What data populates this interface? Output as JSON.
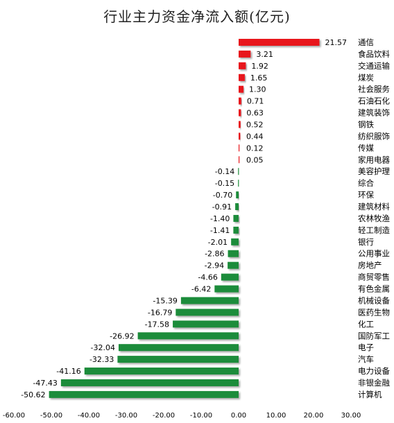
{
  "chart_data": {
    "type": "bar",
    "orientation": "horizontal",
    "title": "行业主力资金净流入额(亿元)",
    "xlabel": "",
    "ylabel": "",
    "xlim": [
      -60,
      30
    ],
    "xticks": [
      "-60.00",
      "-50.00",
      "-40.00",
      "-30.00",
      "-20.00",
      "-10.00",
      "0.00",
      "10.00",
      "20.00",
      "30.00"
    ],
    "xtick_values": [
      -60,
      -50,
      -40,
      -30,
      -20,
      -10,
      0,
      10,
      20,
      30
    ],
    "grid": false,
    "positive_color": "#e8141b",
    "negative_color": "#1e8c3a",
    "categories": [
      "通信",
      "食品饮料",
      "交通运输",
      "煤炭",
      "社会服务",
      "石油石化",
      "建筑装饰",
      "钢铁",
      "纺织服饰",
      "传媒",
      "家用电器",
      "美容护理",
      "综合",
      "环保",
      "建筑材料",
      "农林牧渔",
      "轻工制造",
      "银行",
      "公用事业",
      "房地产",
      "商贸零售",
      "有色金属",
      "机械设备",
      "医药生物",
      "化工",
      "国防军工",
      "电子",
      "汽车",
      "电力设备",
      "非银金融",
      "计算机"
    ],
    "values": [
      21.57,
      3.21,
      1.92,
      1.65,
      1.3,
      0.71,
      0.63,
      0.52,
      0.44,
      0.12,
      0.05,
      -0.14,
      -0.15,
      -0.7,
      -0.91,
      -1.4,
      -1.41,
      -2.01,
      -2.86,
      -2.94,
      -4.66,
      -6.42,
      -15.39,
      -16.79,
      -17.58,
      -26.92,
      -32.04,
      -32.33,
      -41.16,
      -47.43,
      -50.62
    ],
    "data_labels": [
      "21.57",
      "3.21",
      "1.92",
      "1.65",
      "1.30",
      "0.71",
      "0.63",
      "0.52",
      "0.44",
      "0.12",
      "0.05",
      "-0.14",
      "-0.15",
      "-0.70",
      "-0.91",
      "-1.40",
      "-1.41",
      "-2.01",
      "-2.86",
      "-2.94",
      "-4.66",
      "-6.42",
      "-15.39",
      "-16.79",
      "-17.58",
      "-26.92",
      "-32.04",
      "-32.33",
      "-41.16",
      "-47.43",
      "-50.62"
    ]
  }
}
